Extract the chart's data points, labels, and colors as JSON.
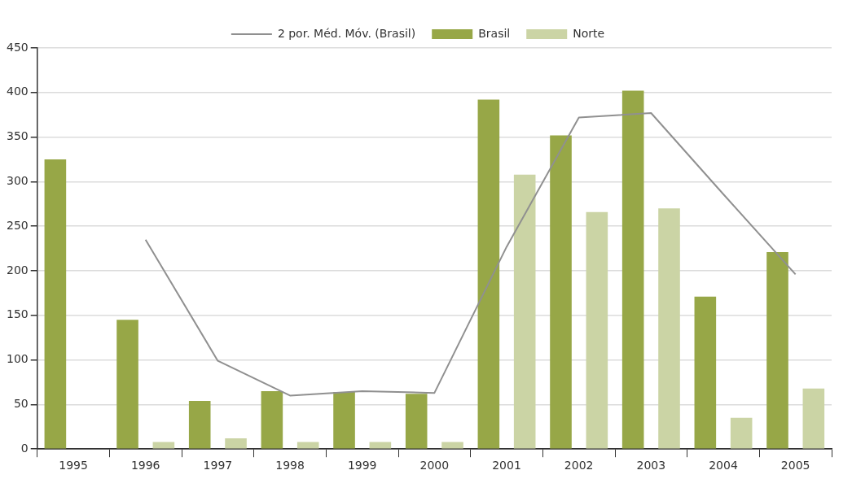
{
  "chart_data": {
    "type": "bar",
    "categories": [
      "1995",
      "1996",
      "1997",
      "1998",
      "1999",
      "2000",
      "2001",
      "2002",
      "2003",
      "2004",
      "2005"
    ],
    "series": [
      {
        "name": "Brasil",
        "color": "#97a747",
        "values": [
          325,
          145,
          54,
          65,
          64,
          62,
          392,
          352,
          402,
          171,
          221
        ]
      },
      {
        "name": "Norte",
        "color": "#cbd4a5",
        "values": [
          null,
          8,
          12,
          8,
          8,
          8,
          308,
          266,
          270,
          35,
          68
        ]
      },
      {
        "name": "2 por. Méd. Móv. (Brasil)",
        "type": "line",
        "color": "#909090",
        "marker": "none",
        "values": [
          null,
          235,
          99,
          60,
          65,
          63,
          227,
          372,
          377,
          286,
          196
        ]
      }
    ],
    "ylim": [
      0,
      450
    ],
    "yticks": [
      0,
      50,
      100,
      150,
      200,
      250,
      300,
      350,
      400,
      450
    ],
    "grid": "y",
    "legend": "top"
  }
}
